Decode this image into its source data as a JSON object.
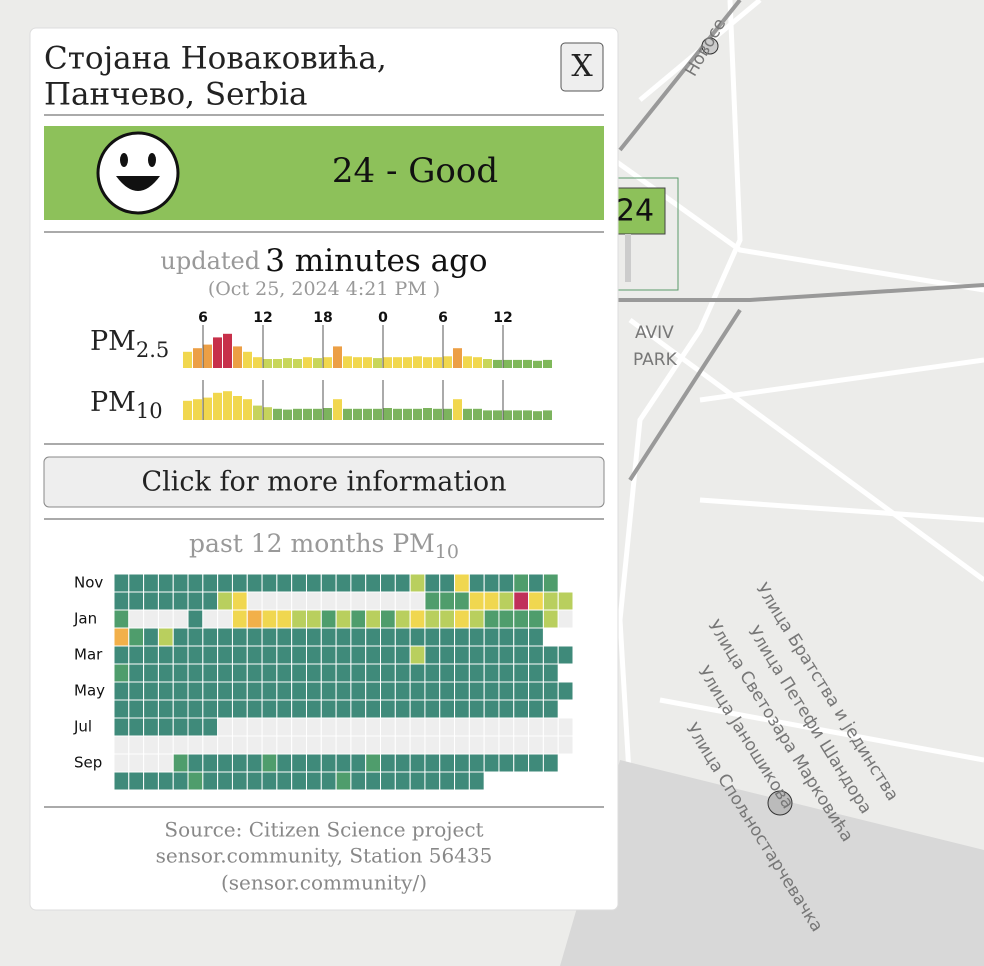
{
  "map": {
    "labels": {
      "novo": "Новосе",
      "aviv": "AVIV",
      "park": "PARK",
      "marker": "24",
      "bratstva": "Улица Братства и јединства",
      "petefi": "Улица Петефи Шандора",
      "svetozara": "Улица Светозара Марковића",
      "janosikova": "Улица Јаношикова",
      "spoljno": "Улица Спољностарчевачка"
    }
  },
  "popup": {
    "title": [
      "Стојана Новаковића,",
      "Панчево, Serbia"
    ],
    "close": "X",
    "aqi": "24 - Good",
    "updated": {
      "prefix": "updated",
      "age": "3 minutes ago",
      "date": "(Oct 25, 2024 4:21 PM )"
    },
    "hourly": {
      "pm25_label": {
        "main": "PM",
        "sub": "2.5"
      },
      "pm10_label": {
        "main": "PM",
        "sub": "10"
      },
      "categories": [
        null,
        null,
        "6",
        null,
        null,
        null,
        null,
        null,
        "12",
        null,
        null,
        null,
        null,
        null,
        "18",
        null,
        null,
        null,
        null,
        null,
        "0",
        null,
        null,
        null,
        null,
        null,
        "6",
        null,
        null,
        null,
        null,
        null,
        "12",
        null,
        null,
        null,
        null
      ],
      "pm25": [
        18,
        22,
        26,
        34,
        38,
        24,
        18,
        12,
        10,
        10,
        11,
        10,
        12,
        11,
        12,
        24,
        13,
        12,
        12,
        11,
        12,
        12,
        12,
        13,
        12,
        12,
        13,
        22,
        13,
        12,
        10,
        9,
        9,
        9,
        9,
        8,
        9
      ],
      "pm10": [
        24,
        26,
        28,
        34,
        36,
        30,
        26,
        18,
        16,
        14,
        13,
        14,
        14,
        14,
        15,
        26,
        14,
        14,
        14,
        14,
        15,
        14,
        14,
        14,
        15,
        14,
        14,
        26,
        14,
        14,
        12,
        12,
        12,
        12,
        12,
        11,
        12
      ]
    },
    "button": "Click for more information",
    "heatmap": {
      "title": {
        "main": "past 12 months PM",
        "sub": "10"
      },
      "months": [
        "Nov",
        null,
        "Jan",
        null,
        "Mar",
        null,
        "May",
        null,
        "Jul",
        null,
        "Sep",
        null
      ],
      "rows": [
        [
          15,
          15,
          15,
          15,
          15,
          15,
          15,
          15,
          15,
          15,
          15,
          15,
          15,
          15,
          15,
          15,
          15,
          15,
          15,
          15,
          35,
          15,
          15,
          45,
          15,
          15,
          15,
          25,
          15,
          25
        ],
        [
          15,
          15,
          15,
          15,
          15,
          15,
          15,
          35,
          45,
          null,
          null,
          null,
          null,
          null,
          null,
          null,
          null,
          null,
          null,
          null,
          null,
          25,
          25,
          25,
          45,
          45,
          35,
          80,
          45,
          35,
          35
        ],
        [
          25,
          null,
          null,
          null,
          null,
          15,
          null,
          null,
          45,
          50,
          45,
          45,
          35,
          35,
          25,
          35,
          25,
          35,
          25,
          35,
          45,
          35,
          35,
          45,
          35,
          25,
          25,
          25,
          25,
          35,
          null
        ],
        [
          60,
          25,
          15,
          35,
          15,
          15,
          15,
          15,
          15,
          15,
          15,
          15,
          15,
          15,
          15,
          15,
          15,
          15,
          15,
          15,
          15,
          15,
          15,
          15,
          15,
          15,
          15,
          15,
          15
        ],
        [
          15,
          15,
          15,
          15,
          15,
          15,
          15,
          15,
          15,
          15,
          15,
          15,
          15,
          15,
          15,
          15,
          15,
          15,
          15,
          15,
          35,
          15,
          15,
          15,
          15,
          15,
          15,
          15,
          15,
          15,
          15
        ],
        [
          25,
          15,
          15,
          15,
          15,
          15,
          15,
          15,
          15,
          15,
          15,
          15,
          15,
          15,
          15,
          15,
          15,
          15,
          15,
          15,
          15,
          15,
          15,
          15,
          15,
          15,
          15,
          15,
          15,
          15
        ],
        [
          15,
          15,
          15,
          15,
          15,
          15,
          15,
          15,
          15,
          15,
          15,
          15,
          15,
          15,
          15,
          15,
          15,
          15,
          15,
          15,
          15,
          15,
          15,
          15,
          15,
          15,
          15,
          15,
          15,
          15,
          15
        ],
        [
          15,
          15,
          15,
          15,
          15,
          15,
          15,
          15,
          15,
          15,
          15,
          15,
          15,
          15,
          15,
          15,
          15,
          15,
          15,
          15,
          15,
          15,
          15,
          15,
          15,
          15,
          15,
          15,
          15,
          15
        ],
        [
          15,
          15,
          15,
          15,
          15,
          15,
          15,
          null,
          null,
          null,
          null,
          null,
          null,
          null,
          null,
          null,
          null,
          null,
          null,
          null,
          null,
          null,
          null,
          null,
          null,
          null,
          null,
          null,
          null,
          null,
          null
        ],
        [
          null,
          null,
          null,
          null,
          null,
          null,
          null,
          null,
          null,
          null,
          null,
          null,
          null,
          null,
          null,
          null,
          null,
          null,
          null,
          null,
          null,
          null,
          null,
          null,
          null,
          null,
          null,
          null,
          null,
          null,
          null
        ],
        [
          null,
          null,
          null,
          null,
          25,
          15,
          15,
          15,
          15,
          15,
          25,
          15,
          15,
          15,
          15,
          15,
          15,
          25,
          15,
          15,
          15,
          15,
          15,
          15,
          15,
          15,
          15,
          15,
          15,
          15
        ],
        [
          15,
          15,
          15,
          15,
          15,
          25,
          15,
          15,
          15,
          15,
          15,
          15,
          15,
          15,
          15,
          25,
          15,
          15,
          15,
          15,
          15,
          15,
          15,
          15,
          15
        ]
      ]
    },
    "source": [
      "Source: Citizen Science project",
      "sensor.community, Station 56435",
      "(sensor.community/)"
    ]
  }
}
